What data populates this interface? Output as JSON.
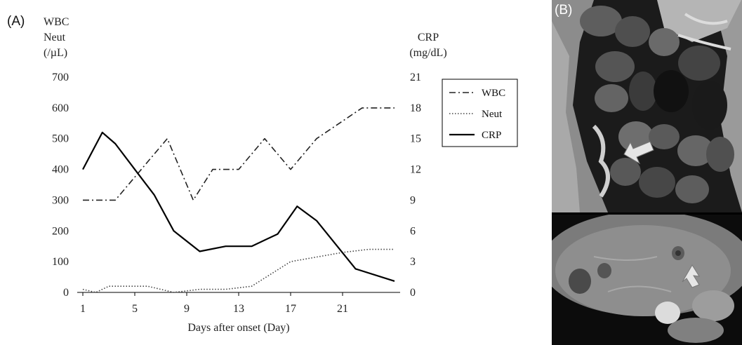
{
  "panel_a_label": "(A)",
  "panel_b_label": "(B)",
  "chart_data": {
    "type": "line",
    "xlabel": "Days after onset (Day)",
    "x_ticks": [
      1,
      5,
      9,
      13,
      17,
      21
    ],
    "xlim": [
      1,
      25
    ],
    "left_axis": {
      "label_lines": [
        "WBC",
        "Neut",
        "(/µL)"
      ],
      "ylim": [
        0,
        700
      ],
      "ticks": [
        0,
        100,
        200,
        300,
        400,
        500,
        600,
        700
      ]
    },
    "right_axis": {
      "label_lines": [
        "CRP",
        "(mg/dL)"
      ],
      "ylim": [
        0,
        21
      ],
      "ticks": [
        0,
        3,
        6,
        9,
        12,
        15,
        18,
        21
      ]
    },
    "legend": {
      "placement": "right",
      "entries": [
        "WBC",
        "Neut",
        "CRP"
      ]
    },
    "series": [
      {
        "name": "WBC",
        "axis": "left",
        "style": "dash-dot",
        "x": [
          1,
          2.5,
          3.5,
          7.5,
          9.5,
          11,
          13,
          15,
          17,
          19,
          22.5,
          25
        ],
        "values": [
          300,
          300,
          300,
          500,
          300,
          400,
          400,
          500,
          400,
          500,
          600,
          600
        ]
      },
      {
        "name": "Neut",
        "axis": "left",
        "style": "dotted",
        "x": [
          1,
          2,
          3,
          6,
          8,
          10,
          12,
          14,
          17,
          21,
          23,
          25
        ],
        "values": [
          10,
          0,
          20,
          20,
          0,
          10,
          10,
          20,
          100,
          130,
          140,
          140
        ]
      },
      {
        "name": "CRP",
        "axis": "right",
        "style": "solid",
        "x": [
          1,
          2.5,
          3.5,
          5,
          6.5,
          8,
          10,
          12,
          14,
          16,
          17.5,
          19,
          22,
          25
        ],
        "values": [
          12,
          15.6,
          14.5,
          12,
          9.5,
          6,
          4,
          4.5,
          4.5,
          5.7,
          8.4,
          7,
          2.3,
          1.1
        ]
      }
    ]
  }
}
